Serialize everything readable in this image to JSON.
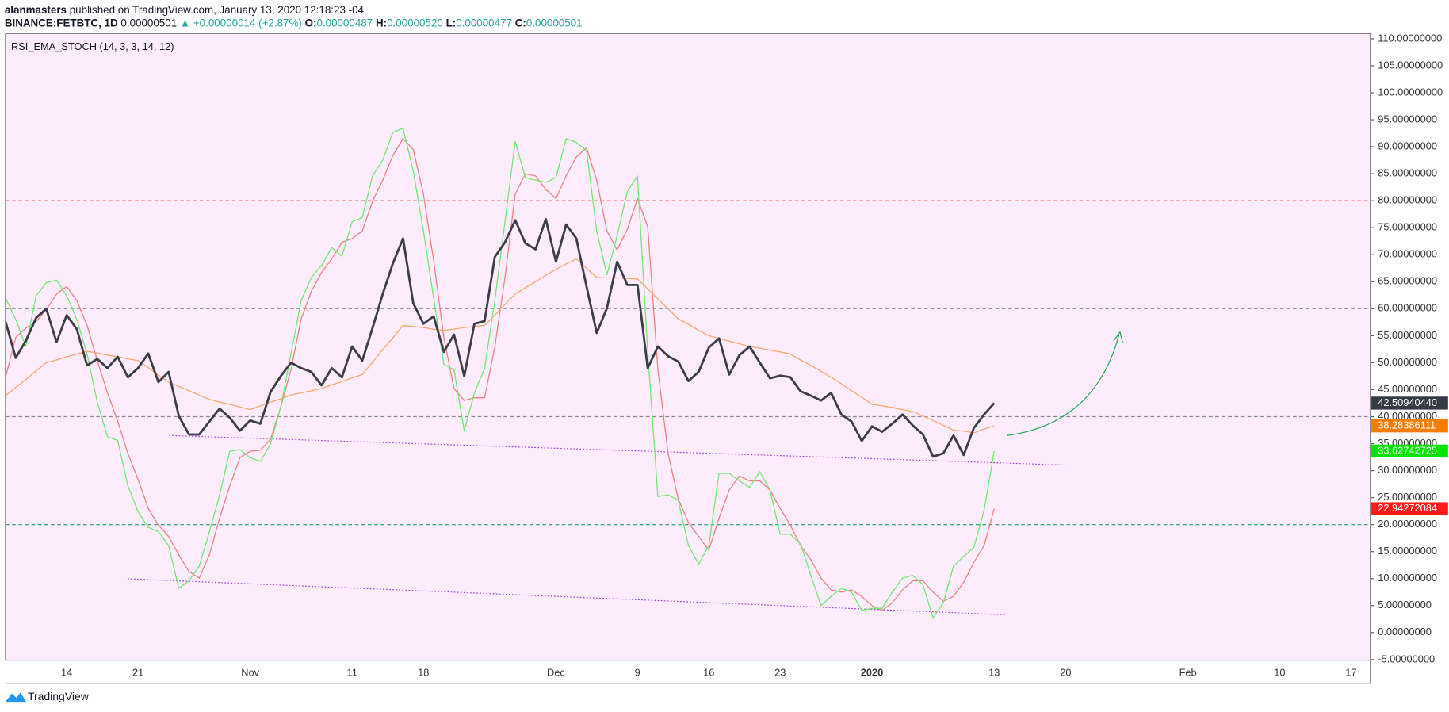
{
  "header": {
    "author": "alanmasters",
    "published": "published on TradingView.com, January 13, 2020 12:18:23 -04",
    "symbol": "BINANCE:FETBTC, 1D",
    "price": "0.00000501",
    "change": "▲ +0.00000014 (+2.87%)",
    "ohlc": [
      {
        "label": "O:",
        "value": "0.00000487"
      },
      {
        "label": "H:",
        "value": "0.00000520"
      },
      {
        "label": "L:",
        "value": "0.00000477"
      },
      {
        "label": "C:",
        "value": "0.00000501"
      }
    ]
  },
  "footer": {
    "brand": "TradingView"
  },
  "chart_data": {
    "type": "line",
    "title": "RSI_EMA_STOCH (14, 3, 3, 14, 12)",
    "categories": [
      null,
      null,
      null,
      null,
      null,
      null,
      "14",
      null,
      null,
      null,
      null,
      null,
      null,
      "21",
      null,
      null,
      null,
      null,
      null,
      null,
      null,
      null,
      null,
      null,
      "Nov",
      null,
      null,
      null,
      null,
      null,
      null,
      null,
      null,
      null,
      "11",
      null,
      null,
      null,
      null,
      null,
      null,
      "18",
      null,
      null,
      null,
      null,
      null,
      null,
      null,
      null,
      null,
      null,
      null,
      null,
      "Dec",
      null,
      null,
      null,
      null,
      null,
      null,
      null,
      "9",
      null,
      null,
      null,
      null,
      null,
      null,
      "16",
      null,
      null,
      null,
      null,
      null,
      null,
      "23",
      null,
      null,
      null,
      null,
      null,
      null,
      null,
      null,
      "2020",
      null,
      null,
      null,
      null,
      null,
      null,
      null,
      null,
      null,
      null,
      null,
      "13",
      null,
      null,
      null,
      null,
      null,
      null,
      "20",
      null,
      null,
      null,
      null,
      null,
      null,
      null,
      null,
      null,
      null,
      null,
      "Feb",
      null,
      null,
      null,
      null,
      null,
      null,
      null,
      null,
      "10",
      null,
      null,
      null,
      null,
      null,
      null,
      "17"
    ],
    "ylim": [
      -5.1,
      111
    ],
    "yticks": [
      {
        "value": 110,
        "label": "110.00000000"
      },
      {
        "value": 105,
        "label": "105.00000000"
      },
      {
        "value": 100,
        "label": "100.00000000"
      },
      {
        "value": 95,
        "label": "95.00000000"
      },
      {
        "value": 90,
        "label": "90.00000000"
      },
      {
        "value": 85,
        "label": "85.00000000"
      },
      {
        "value": 80,
        "label": "80.00000000"
      },
      {
        "value": 75,
        "label": "75.00000000"
      },
      {
        "value": 70,
        "label": "70.00000000"
      },
      {
        "value": 65,
        "label": "65.00000000"
      },
      {
        "value": 60,
        "label": "60.00000000"
      },
      {
        "value": 55,
        "label": "55.00000000"
      },
      {
        "value": 50,
        "label": "50.00000000"
      },
      {
        "value": 45,
        "label": "45.00000000"
      },
      {
        "value": 40,
        "label": "40.00000000"
      },
      {
        "value": 35,
        "label": "35.00000000"
      },
      {
        "value": 30,
        "label": "30.00000000"
      },
      {
        "value": 25,
        "label": "25.00000000"
      },
      {
        "value": 20,
        "label": "20.00000000"
      },
      {
        "value": 15,
        "label": "15.00000000"
      },
      {
        "value": 10,
        "label": "10.00000000"
      },
      {
        "value": 5,
        "label": "5.00000000"
      },
      {
        "value": 0,
        "label": "0.00000000"
      },
      {
        "value": -5,
        "label": "-5.00000000"
      }
    ],
    "hlines": [
      {
        "value": 80,
        "color": "#e53935"
      },
      {
        "value": 60,
        "color": "#8a8a8a"
      },
      {
        "value": 40,
        "color": "#8a8a8a"
      },
      {
        "value": 20,
        "color": "#1e9e63"
      }
    ],
    "background": "#fcecfc",
    "series": [
      {
        "color": "#f08080",
        "label_color": "#ff1a1a",
        "width": 1.1,
        "last_label": "22.94272084",
        "values": [
          47.3,
          54.7,
          56.4,
          57.6,
          59.8,
          62.7,
          64.1,
          61.5,
          56.9,
          50.4,
          44.4,
          39.2,
          33.2,
          28.4,
          23,
          19.9,
          17.8,
          14.4,
          11.3,
          10.1,
          14.4,
          21.2,
          27.2,
          32.4,
          33.6,
          33.8,
          35.8,
          41.8,
          48.7,
          58.1,
          63.2,
          66.7,
          69.2,
          72.3,
          73,
          74.4,
          79.9,
          83.8,
          88.4,
          91.5,
          89.5,
          81.2,
          68.9,
          54.7,
          45.2,
          43,
          43.5,
          43.5,
          52.9,
          65.8,
          81.2,
          85,
          84.6,
          82.1,
          80.4,
          84.6,
          88.1,
          89.8,
          83.8,
          74.4,
          70.9,
          74.7,
          80.4,
          75.2,
          48.7,
          33.2,
          24.7,
          20.4,
          17.8,
          15.3,
          21.2,
          26.4,
          29,
          28.1,
          28.1,
          26.4,
          23,
          19.9,
          16.1,
          13.5,
          10.1,
          7.9,
          7.5,
          7.9,
          6.7,
          5,
          4.1,
          5.5,
          7.9,
          9.6,
          9.6,
          7.5,
          5.8,
          6.7,
          9.3,
          13,
          16.1,
          22.94272084,
          null,
          null,
          null,
          null,
          null,
          null,
          null,
          null,
          null,
          null,
          null,
          null,
          null,
          null,
          null,
          null,
          null,
          null,
          null,
          null,
          null,
          null,
          null,
          null,
          null,
          null,
          null,
          null,
          null,
          null,
          null,
          null,
          null,
          null,
          null
        ]
      },
      {
        "color": "#6ee86e",
        "label_color": "#00e600",
        "width": 1.1,
        "last_label": "33.62742725",
        "values": [
          62,
          58,
          53,
          62.4,
          64.8,
          65.3,
          62.4,
          58,
          51.6,
          42.7,
          36.3,
          35.6,
          27.2,
          22.4,
          19.5,
          18.7,
          16.1,
          8.2,
          9.6,
          12.3,
          18.7,
          25.5,
          33.6,
          33.9,
          32.4,
          31.7,
          35,
          41.8,
          51.6,
          61.5,
          65.8,
          68,
          71.3,
          69.7,
          76.1,
          76.9,
          84.6,
          87.5,
          92.7,
          93.4,
          85.5,
          74.4,
          62,
          49.7,
          48.7,
          37.4,
          44.4,
          49,
          61.5,
          76.1,
          91,
          84.3,
          83.8,
          83.4,
          84.3,
          91.5,
          90.8,
          89.3,
          74.4,
          66.3,
          73.5,
          81.7,
          84.6,
          52.1,
          25.2,
          25.5,
          24.5,
          16.1,
          12.7,
          16.1,
          29.5,
          29.5,
          28.1,
          26.9,
          29.8,
          26.4,
          18.2,
          18.2,
          16.4,
          10.6,
          5,
          6.7,
          8.2,
          7.5,
          4.1,
          4.5,
          4.5,
          7.5,
          10.1,
          10.6,
          8.9,
          2.7,
          5.5,
          12.3,
          14.1,
          15.8,
          22.6,
          33.62742725,
          null,
          null,
          null,
          null,
          null,
          null,
          null,
          null,
          null,
          null,
          null,
          null,
          null,
          null,
          null,
          null,
          null,
          null,
          null,
          null,
          null,
          null,
          null,
          null,
          null,
          null,
          null,
          null,
          null,
          null,
          null,
          null,
          null,
          null,
          null
        ]
      },
      {
        "color": "#f7a76c",
        "label_color": "#f57c00",
        "width": 1.1,
        "last_label": "38.28386111",
        "values": [
          43.9,
          45.4,
          46.9,
          48.5,
          50,
          50.5,
          51.1,
          51.6,
          52.1,
          51.8,
          51.4,
          51.1,
          50.7,
          50.4,
          49.1,
          47.7,
          46.4,
          45.6,
          44.8,
          44,
          43.2,
          42.7,
          42.3,
          41.8,
          41.3,
          42,
          42.7,
          43.3,
          44,
          44.4,
          44.8,
          45.2,
          45.9,
          46.5,
          47.2,
          47.8,
          50.1,
          52.4,
          54.6,
          56.9,
          56.7,
          56.5,
          56.2,
          56,
          56.2,
          56.5,
          56.7,
          56.9,
          58.8,
          60.8,
          62.7,
          63.9,
          65,
          66.2,
          67.3,
          68.3,
          69.2,
          67.5,
          65.8,
          65.7,
          65.7,
          65.6,
          65.5,
          63.7,
          61.8,
          60,
          58.1,
          57.1,
          56,
          55,
          54.5,
          54,
          53.5,
          53,
          52.7,
          52.3,
          52,
          51.6,
          50.5,
          49.5,
          48.4,
          47.3,
          46.1,
          44.8,
          43.6,
          42.3,
          42,
          41.7,
          41.3,
          41,
          40.1,
          39.3,
          38.4,
          37.5,
          37.3,
          37,
          37.7,
          38.28386111,
          null,
          null,
          null,
          null,
          null,
          null,
          null,
          null,
          null,
          null,
          null,
          null,
          null,
          null,
          null,
          null,
          null,
          null,
          null,
          null,
          null,
          null,
          null,
          null,
          null,
          null,
          null,
          null,
          null,
          null,
          null,
          null,
          null,
          null,
          null
        ]
      },
      {
        "color": "#3b3d48",
        "label_color": "#363a45",
        "width": 2.4,
        "last_label": "42.50940440",
        "values": [
          57.6,
          50.9,
          54.1,
          58.3,
          60,
          53.8,
          58.8,
          56.2,
          49.5,
          50.7,
          49,
          51.1,
          47.3,
          49,
          51.7,
          46.4,
          48.3,
          40.1,
          36.7,
          36.7,
          39.1,
          41.5,
          39.8,
          37.4,
          39.3,
          38.7,
          44.6,
          47.5,
          50,
          49,
          48.3,
          45.8,
          49,
          47.3,
          53,
          50.4,
          56.4,
          62.7,
          68.4,
          73,
          61,
          57.2,
          58.6,
          52,
          55.2,
          47.5,
          57.2,
          57.7,
          69.6,
          72.3,
          76.4,
          72.1,
          71,
          76.6,
          68.7,
          75.6,
          73,
          64.1,
          55.5,
          60.1,
          68.7,
          64.4,
          64.4,
          49,
          53,
          51.2,
          50.2,
          46.6,
          48.3,
          52.8,
          54.5,
          47.8,
          51.4,
          53,
          50,
          47.1,
          47.6,
          47.3,
          44.7,
          43.9,
          43,
          44.4,
          40.4,
          39.1,
          35.5,
          38.2,
          37.2,
          38.7,
          40.4,
          38.4,
          36.7,
          32.6,
          33.2,
          36.5,
          32.9,
          37.9,
          40.4,
          42.5094044,
          null,
          null,
          null,
          null,
          null,
          null,
          null,
          null,
          null,
          null,
          null,
          null,
          null,
          null,
          null,
          null,
          null,
          null,
          null,
          null,
          null,
          null,
          null,
          null,
          null,
          null,
          null,
          null,
          null,
          null,
          null,
          null,
          null,
          null,
          null
        ]
      }
    ]
  }
}
